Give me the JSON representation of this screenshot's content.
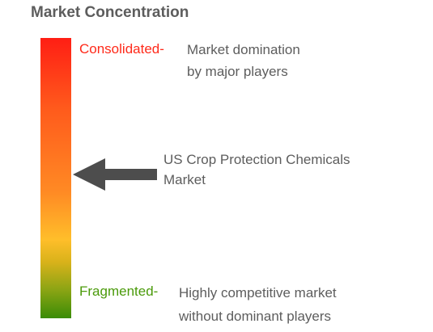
{
  "title": "Market Concentration",
  "scale": {
    "top_label": "Consolidated-",
    "top_color": "#ff2a1a",
    "bottom_label": "Fragmented-",
    "bottom_color": "#4a9a0a",
    "gradient_colors": [
      "#ff1e14",
      "#ff8a24",
      "#ffbe2a",
      "#3a8c06"
    ]
  },
  "descriptions": {
    "consolidated": [
      "Market domination",
      "by major players"
    ],
    "fragmented": [
      "Highly competitive market",
      "without dominant players"
    ]
  },
  "pointer": {
    "icon": "left-arrow-icon",
    "color": "#4d4d4d",
    "label": [
      "US Crop Protection Chemicals",
      "Market"
    ]
  }
}
